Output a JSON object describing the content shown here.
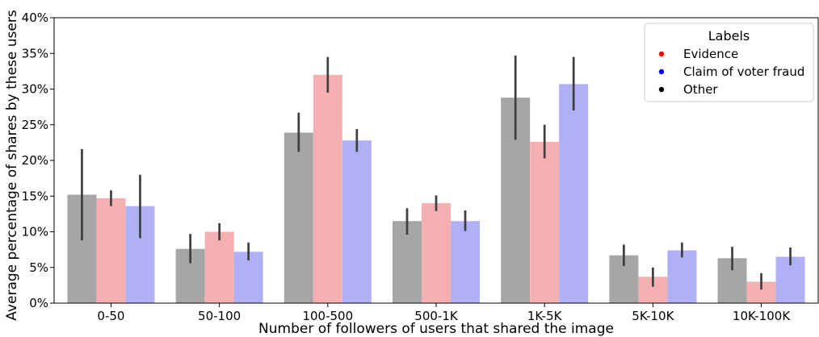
{
  "chart_data": {
    "type": "bar",
    "xlabel": "Number of followers of users that shared the image",
    "ylabel": "Average percentage of shares by these users",
    "ylim": [
      0,
      40
    ],
    "y_ticks": [
      "0%",
      "5%",
      "10%",
      "15%",
      "20%",
      "25%",
      "30%",
      "35%",
      "40%"
    ],
    "y_tick_values": [
      0,
      5,
      10,
      15,
      20,
      25,
      30,
      35,
      40
    ],
    "categories": [
      "0-50",
      "50-100",
      "100-500",
      "500-1K",
      "1K-5K",
      "5K-10K",
      "10K-100K"
    ],
    "grid": false,
    "legend": {
      "title": "Labels",
      "placement": "top-right",
      "entries": [
        "Evidence",
        "Claim of voter fraud",
        "Other"
      ],
      "marker_colors": [
        "#ff0000",
        "#0000ff",
        "#000000"
      ]
    },
    "bar_order": [
      "Other",
      "Evidence",
      "Claim of voter fraud"
    ],
    "series": [
      {
        "name": "Other",
        "color": "#a6a6a6",
        "values": [
          15.2,
          7.6,
          23.9,
          11.5,
          28.8,
          6.7,
          6.3
        ],
        "error_low": [
          8.8,
          5.6,
          21.2,
          9.6,
          22.9,
          5.2,
          4.6
        ],
        "error_high": [
          21.6,
          9.7,
          26.7,
          13.3,
          34.7,
          8.2,
          7.9
        ]
      },
      {
        "name": "Evidence",
        "color": "#f4b0b0",
        "values": [
          14.7,
          10.0,
          32.0,
          14.0,
          22.6,
          3.7,
          3.0
        ],
        "error_low": [
          13.6,
          8.8,
          29.5,
          12.9,
          20.3,
          2.3,
          1.9
        ],
        "error_high": [
          15.8,
          11.2,
          34.5,
          15.1,
          25.0,
          5.0,
          4.2
        ]
      },
      {
        "name": "Claim of voter fraud",
        "color": "#b0b0f4",
        "values": [
          13.6,
          7.2,
          22.8,
          11.5,
          30.7,
          7.4,
          6.5
        ],
        "error_low": [
          9.1,
          6.0,
          21.2,
          10.1,
          27.0,
          6.4,
          5.3
        ],
        "error_high": [
          18.0,
          8.5,
          24.4,
          13.0,
          34.5,
          8.5,
          7.8
        ]
      }
    ]
  }
}
